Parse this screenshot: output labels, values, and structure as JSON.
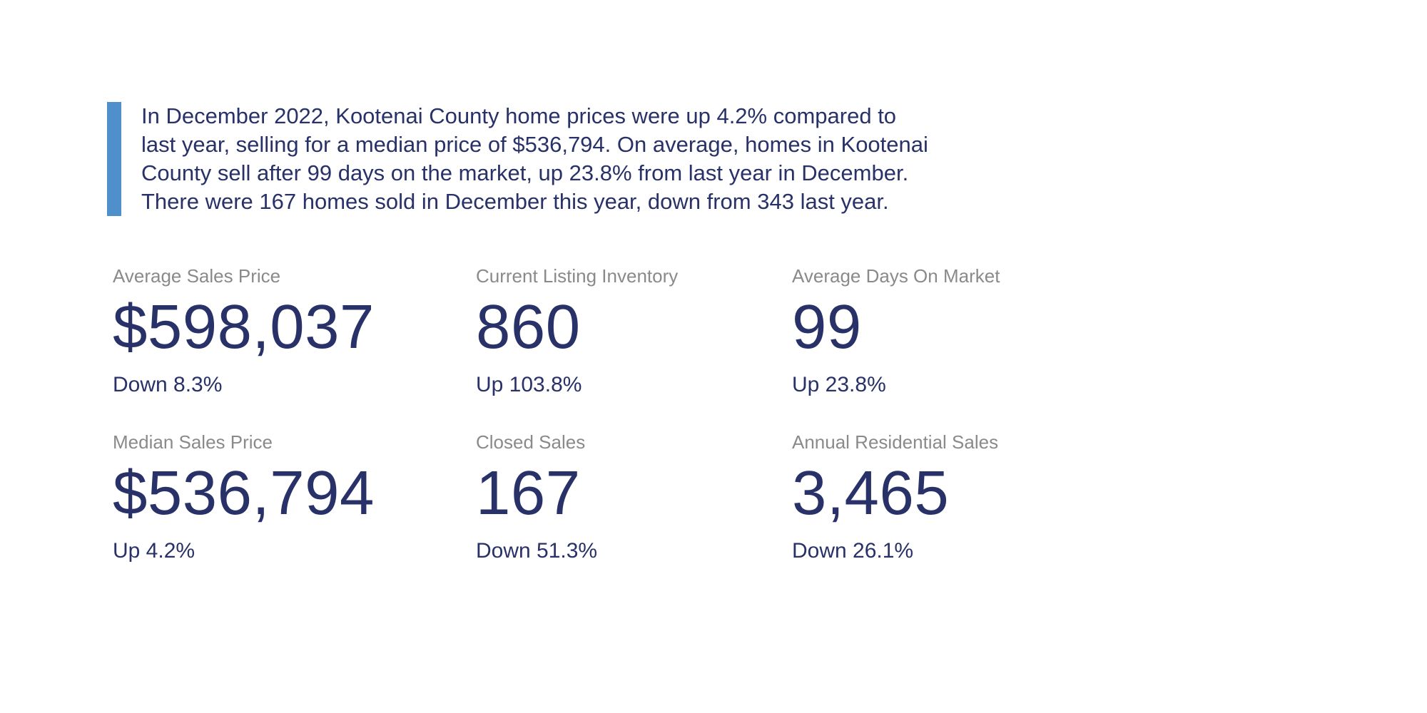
{
  "colors": {
    "navy": "#283168",
    "gray": "#8a8a8a",
    "accent": "#4f8fcc",
    "bg": "#ffffff"
  },
  "summary": {
    "full_text": "In December 2022, Kootenai County home prices were up 4.2% compared to last year, selling for a median price of $536,794. On average, homes in Kootenai County sell after 99 days on the market, up 23.8% from last year in December. There were 167 homes sold in December this year, down from 343 last year.",
    "lines": [
      "In December 2022, Kootenai County home prices were up 4.2% compared to",
      "last year, selling for a median price of $536,794. On average, homes in Kootenai",
      "County sell after 99 days on the market, up 23.8% from last year in December.",
      "There were 167 homes sold in December this year, down from 343 last year."
    ]
  },
  "stats": [
    {
      "label": "Average Sales Price",
      "value": "$598,037",
      "change": "Down 8.3%"
    },
    {
      "label": "Current Listing Inventory",
      "value": "860",
      "change": "Up 103.8%"
    },
    {
      "label": "Average Days On Market",
      "value": "99",
      "change": "Up 23.8%"
    },
    {
      "label": "Median Sales Price",
      "value": "$536,794",
      "change": "Up 4.2%"
    },
    {
      "label": "Closed Sales",
      "value": "167",
      "change": "Down 51.3%"
    },
    {
      "label": "Annual Residential Sales",
      "value": "3,465",
      "change": "Down 26.1%"
    }
  ]
}
